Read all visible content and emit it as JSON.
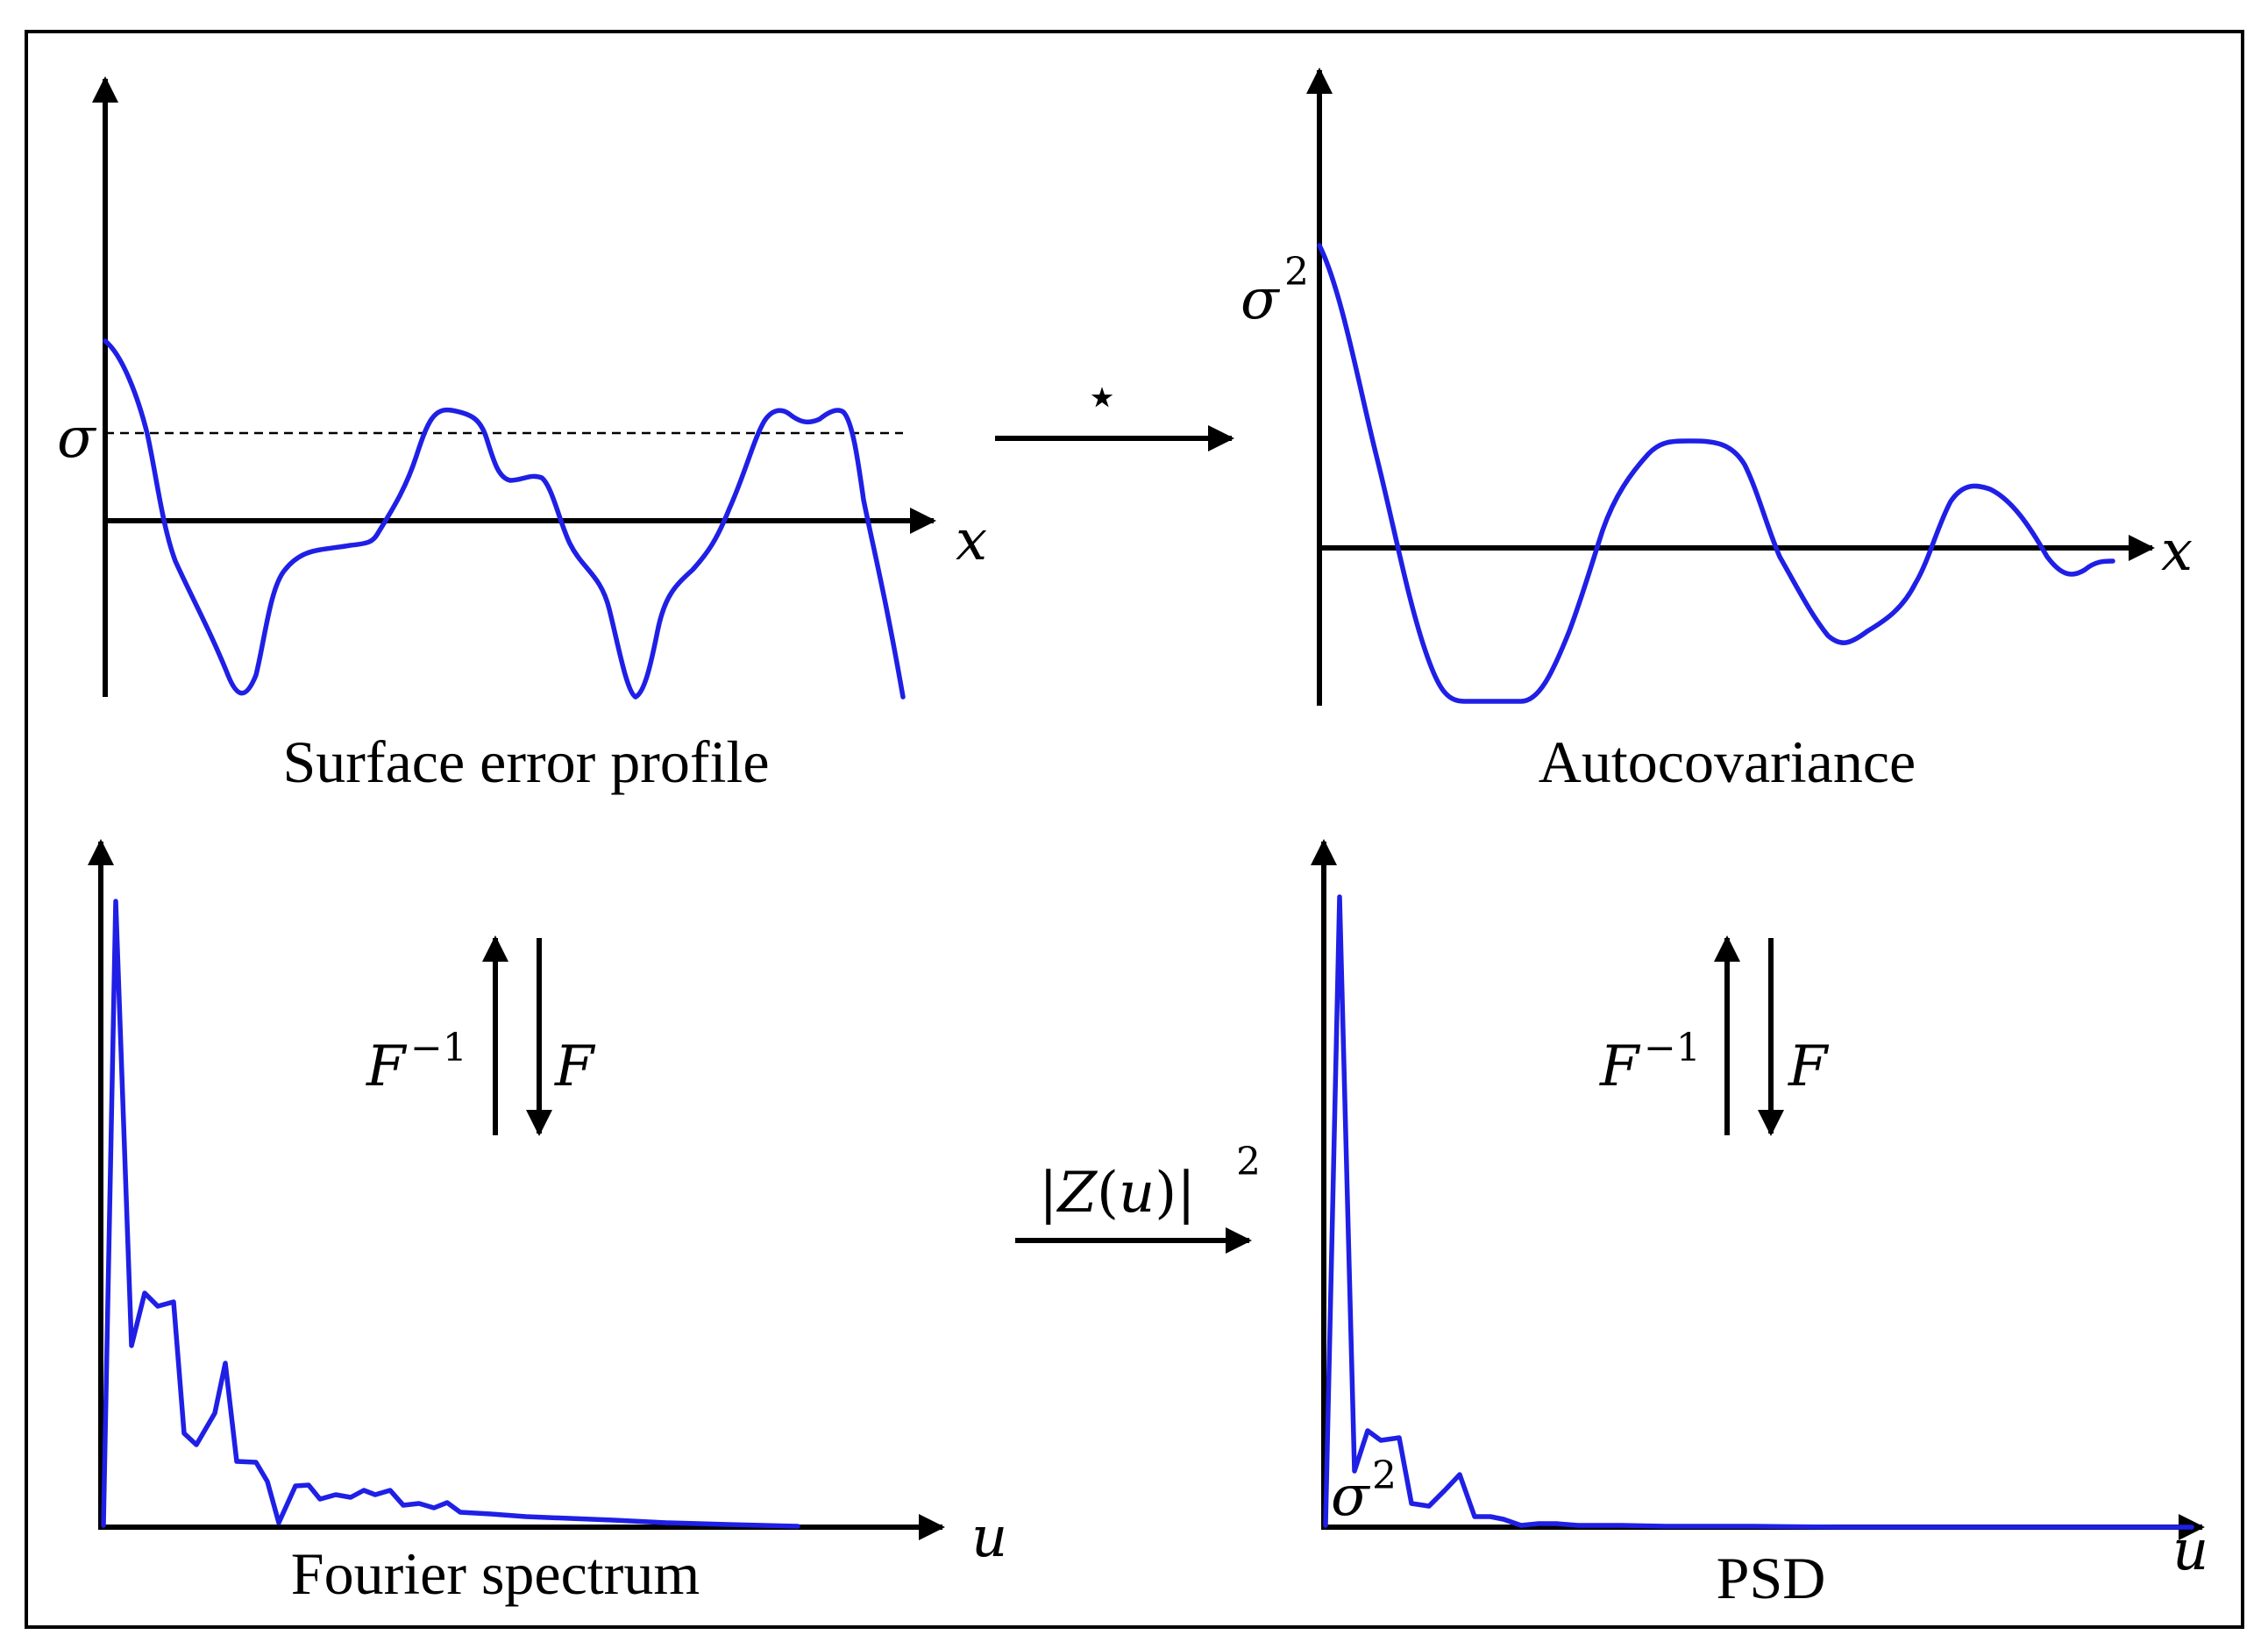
{
  "panels": {
    "surface": {
      "caption": "Surface error profile",
      "x_label": "x",
      "level_label": "σ"
    },
    "autocov": {
      "caption": "Autocovariance",
      "x_label": "x",
      "level_label": "σ",
      "level_sup": "2"
    },
    "fourier": {
      "caption": "Fourier spectrum",
      "x_label": "u"
    },
    "psd": {
      "caption": "PSD",
      "x_label": "u",
      "level_label": "σ",
      "level_sup": "2"
    }
  },
  "operators": {
    "correlation_symbol": "⋆",
    "modulus_square": {
      "bar_left": "|",
      "symbol": "Z",
      "paren_open": "(",
      "arg": "u",
      "paren_close": ")",
      "bar_right": "|",
      "sup": "2"
    },
    "left_pair": {
      "inverse": "F",
      "inverse_sup": "−1",
      "forward": "F"
    },
    "right_pair": {
      "inverse": "F",
      "inverse_sup": "−1",
      "forward": "F"
    }
  },
  "colors": {
    "curve": "#1f1fe6",
    "axis": "#000000",
    "frame": "#000000"
  }
}
